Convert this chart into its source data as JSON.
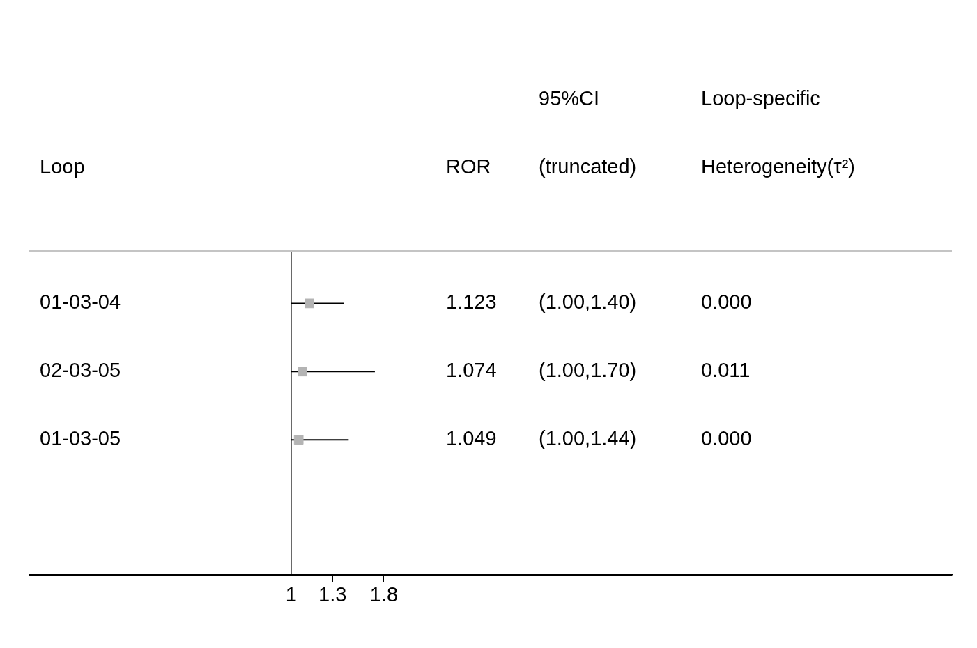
{
  "chart_data": {
    "type": "scatter",
    "orientation": "horizontal",
    "ylabel": "Loop",
    "categories": [
      "01-03-04",
      "02-03-05",
      "01-03-05"
    ],
    "values": [
      1.123,
      1.074,
      1.049
    ],
    "errors": [
      [
        1.0,
        1.4
      ],
      [
        1.0,
        1.7
      ],
      [
        1.0,
        1.44
      ]
    ],
    "color": "#b4b4b4",
    "marker": "square",
    "log": "x",
    "xlim": [
      0.19,
      66
    ],
    "xticks": [
      1,
      1.3,
      1.8
    ],
    "ref_lines": [
      {
        "axis": "x",
        "value": 1,
        "color": "#000000"
      }
    ],
    "annotations": [
      "ROR",
      "95%CI (truncated)",
      "Loop-specific Heterogeneity(τ²)",
      "1.123",
      "(1.00,1.40)",
      "0.000",
      "1.074",
      "(1.00,1.70)",
      "0.011",
      "1.049",
      "(1.00,1.44)",
      "0.000"
    ],
    "legend": false,
    "grid": false
  }
}
